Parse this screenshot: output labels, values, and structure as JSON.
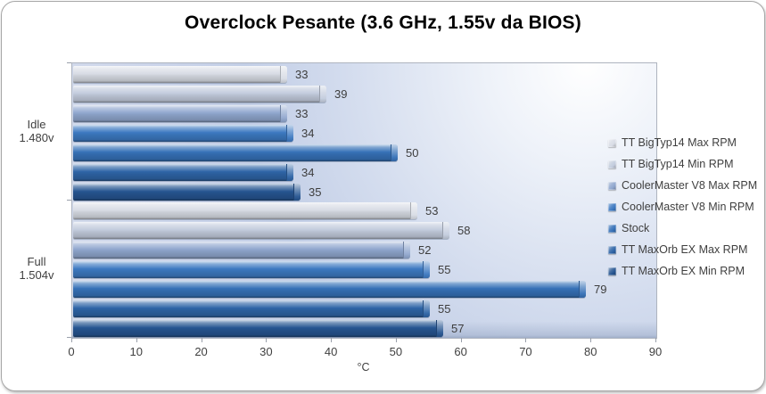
{
  "chart_data": {
    "type": "bar",
    "orientation": "horizontal",
    "title": "Overclock Pesante (3.6 GHz, 1.55v da BIOS)",
    "xlabel": "°C",
    "xlim": [
      0,
      90
    ],
    "x_ticks": [
      0,
      10,
      20,
      30,
      40,
      50,
      60,
      70,
      80,
      90
    ],
    "grid": false,
    "legend_position": "right",
    "data_labels": true,
    "categories": [
      {
        "label": "Idle 1.480v",
        "lines": [
          "Idle",
          "1.480v"
        ]
      },
      {
        "label": "Full 1.504v",
        "lines": [
          "Full",
          "1.504v"
        ]
      }
    ],
    "series": [
      {
        "name": "TT BigTyp14 Max RPM",
        "color": "#d8dce5",
        "values": [
          33,
          53
        ]
      },
      {
        "name": "TT BigTyp14 Min RPM",
        "color": "#c3ccdd",
        "values": [
          39,
          58
        ]
      },
      {
        "name": "CoolerMaster V8 Max RPM",
        "color": "#90a7ce",
        "values": [
          33,
          52
        ]
      },
      {
        "name": "CoolerMaster V8 Min RPM",
        "color": "#3d79c1",
        "values": [
          34,
          55
        ]
      },
      {
        "name": "Stock",
        "color": "#3671b7",
        "values": [
          50,
          79
        ]
      },
      {
        "name": "TT MaxOrb EX Max RPM",
        "color": "#2e64a6",
        "values": [
          34,
          55
        ]
      },
      {
        "name": "TT MaxOrb EX Min RPM",
        "color": "#265591",
        "values": [
          35,
          57
        ]
      }
    ]
  }
}
